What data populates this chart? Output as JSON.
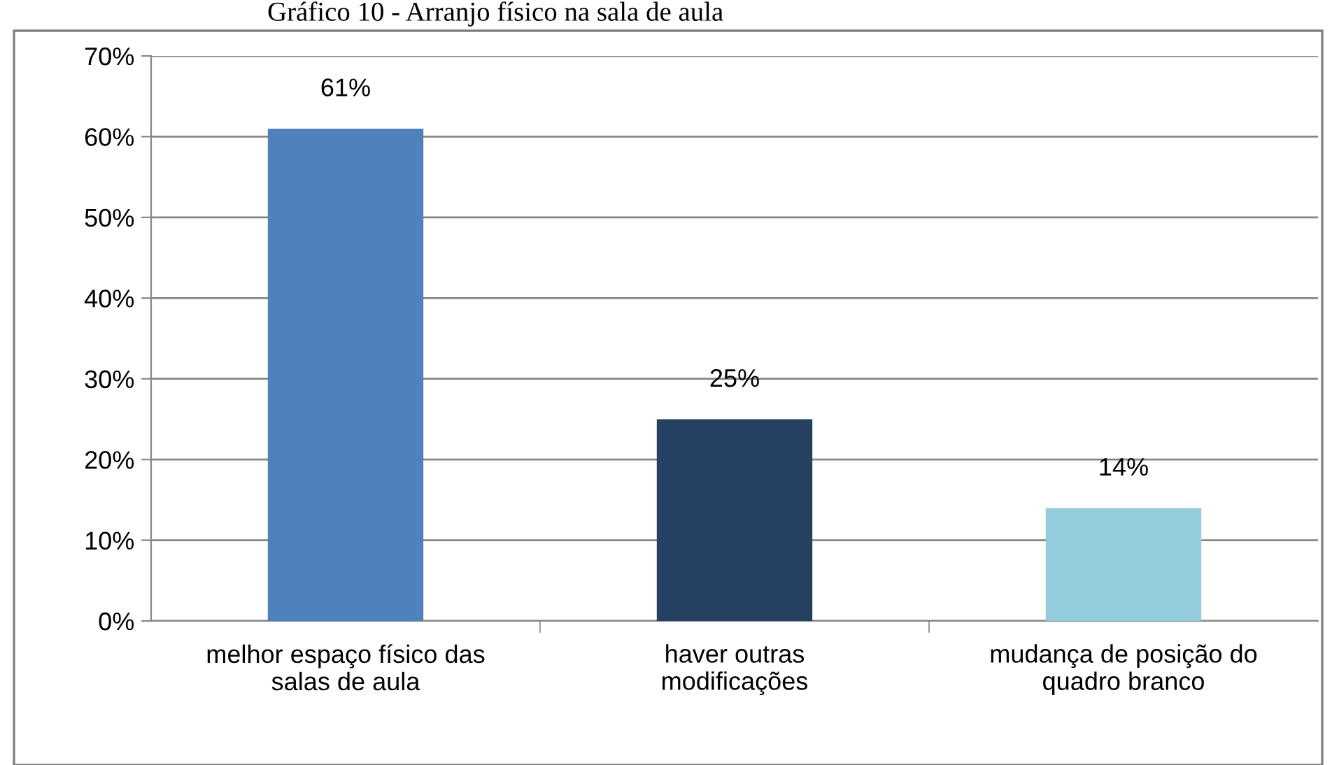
{
  "chart_data": {
    "type": "bar",
    "title": "Gráfico 10 - Arranjo físico na sala de aula",
    "categories": [
      "melhor espaço físico das\nsalas de aula",
      "haver outras\nmodificações",
      "mudança de posição do\nquadro branco"
    ],
    "values": [
      61,
      25,
      14
    ],
    "colors": [
      "#4f81bd",
      "#254061",
      "#93cddd"
    ],
    "value_labels": [
      "61%",
      "25%",
      "14%"
    ],
    "ylim": [
      0,
      70
    ],
    "yticks": [
      {
        "value": 0,
        "label": "0%"
      },
      {
        "value": 10,
        "label": "10%"
      },
      {
        "value": 20,
        "label": "20%"
      },
      {
        "value": 30,
        "label": "30%"
      },
      {
        "value": 40,
        "label": "40%"
      },
      {
        "value": 50,
        "label": "50%"
      },
      {
        "value": 60,
        "label": "60%"
      },
      {
        "value": 70,
        "label": "70%"
      }
    ],
    "grid": "y",
    "legend": false
  }
}
